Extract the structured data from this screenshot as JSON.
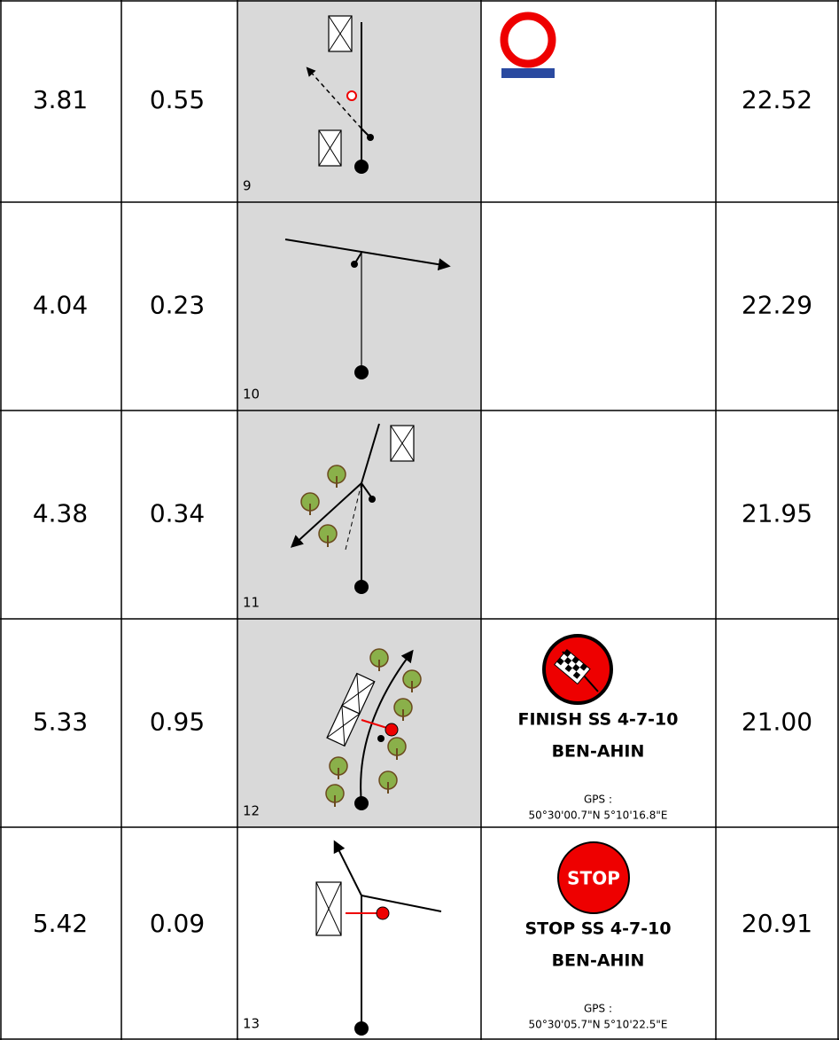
{
  "rows": [
    {
      "total": "3.81",
      "partial": "0.55",
      "box": "9",
      "remaining": "22.52"
    },
    {
      "total": "4.04",
      "partial": "0.23",
      "box": "10",
      "remaining": "22.29"
    },
    {
      "total": "4.38",
      "partial": "0.34",
      "box": "11",
      "remaining": "21.95"
    },
    {
      "total": "5.33",
      "partial": "0.95",
      "box": "12",
      "remaining": "21.00",
      "note": {
        "title": "FINISH SS 4-7-10",
        "place": "BEN-AHIN",
        "gps_label": "GPS :",
        "gps": "50°30'00.7\"N 5°10'16.8\"E"
      }
    },
    {
      "total": "5.42",
      "partial": "0.09",
      "box": "13",
      "remaining": "20.91",
      "note": {
        "sign": "STOP",
        "title": "STOP SS 4-7-10",
        "place": "BEN-AHIN",
        "gps_label": "GPS :",
        "gps": "50°30'05.7\"N 5°10'22.5\"E"
      }
    }
  ]
}
